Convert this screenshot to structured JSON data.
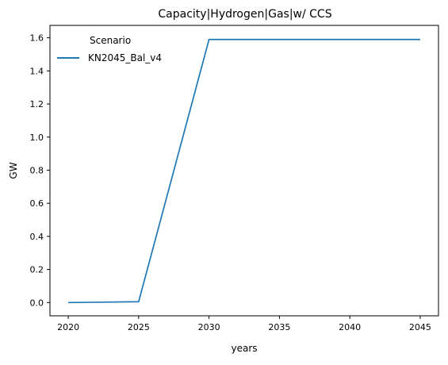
{
  "chart_data": {
    "type": "line",
    "title": "Capacity|Hydrogen|Gas|w/ CCS",
    "xlabel": "years",
    "ylabel": "GW",
    "xlim": [
      2018.7,
      2046.3
    ],
    "ylim": [
      -0.08,
      1.675
    ],
    "xticks": [
      2020,
      2025,
      2030,
      2035,
      2040,
      2045
    ],
    "xtick_labels": [
      "2020",
      "2025",
      "2030",
      "2035",
      "2040",
      "2045"
    ],
    "yticks": [
      0.0,
      0.2,
      0.4,
      0.6,
      0.8,
      1.0,
      1.2,
      1.4,
      1.6
    ],
    "ytick_labels": [
      "0.0",
      "0.2",
      "0.4",
      "0.6",
      "0.8",
      "1.0",
      "1.2",
      "1.4",
      "1.6"
    ],
    "legend_title": "Scenario",
    "legend_position": "top-left",
    "grid": false,
    "x": [
      2020,
      2025,
      2030,
      2035,
      2040,
      2045
    ],
    "series": [
      {
        "name": "KN2045_Bal_v4",
        "color": "#1f77b4",
        "values": [
          0.0,
          0.005,
          1.59,
          1.59,
          1.59,
          1.59
        ]
      }
    ]
  }
}
